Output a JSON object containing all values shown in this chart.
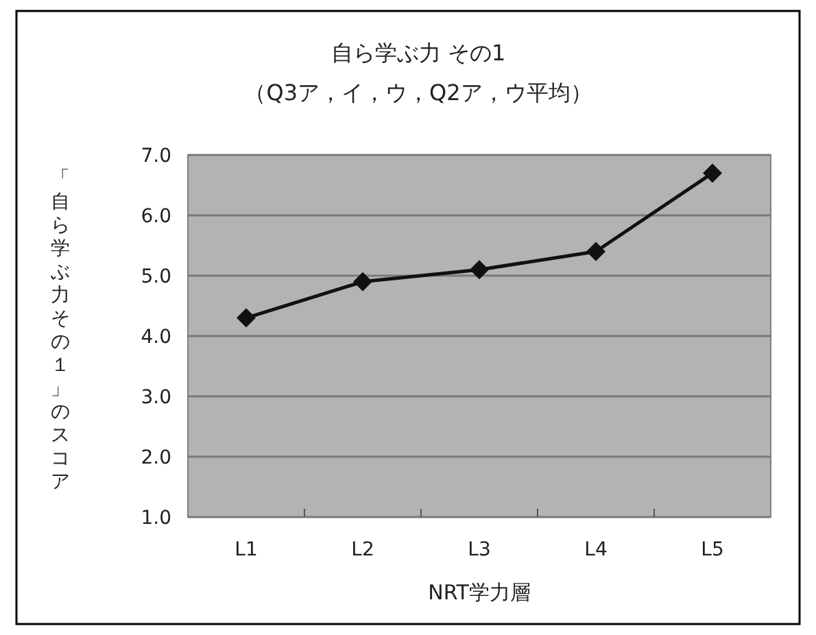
{
  "chart_data": {
    "type": "line",
    "title": "自ら学ぶ力 その1",
    "subtitle": "（Q3ア，イ，ウ，Q2ア，ウ平均）",
    "xlabel": "NRT学力層",
    "ylabel": "「自ら学ぶ力その１」のスコア",
    "categories": [
      "L1",
      "L2",
      "L3",
      "L4",
      "L5"
    ],
    "series": [
      {
        "color": "#111111",
        "values": [
          4.3,
          4.9,
          5.1,
          5.4,
          6.7
        ]
      }
    ],
    "ylim": [
      1,
      7
    ],
    "yticks": [
      {
        "value": 1,
        "label": "1.0"
      },
      {
        "value": 2,
        "label": "2.0"
      },
      {
        "value": 3,
        "label": "3.0"
      },
      {
        "value": 4,
        "label": "4.0"
      },
      {
        "value": 5,
        "label": "5.0"
      },
      {
        "value": 6,
        "label": "6.0"
      },
      {
        "value": 7,
        "label": "7.0"
      }
    ],
    "grid": "y",
    "marker": "diamond",
    "line_style": "solid"
  }
}
